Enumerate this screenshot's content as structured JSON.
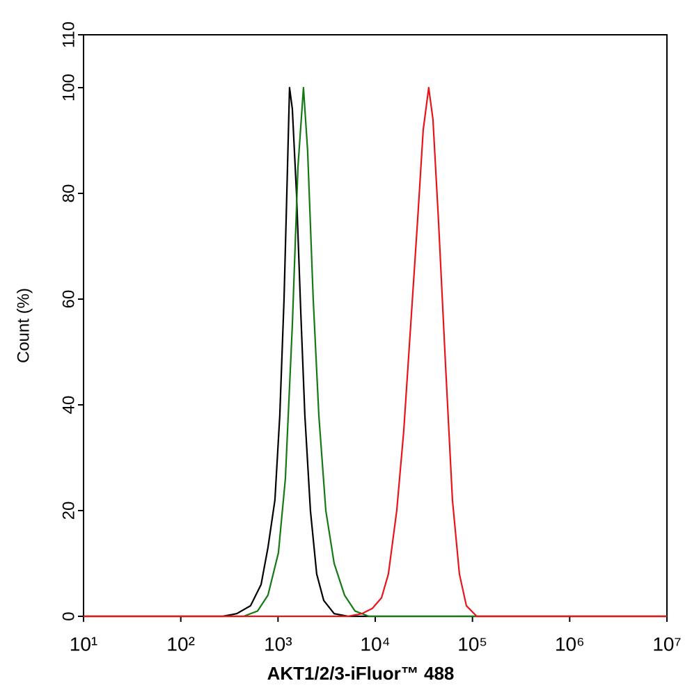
{
  "chart_data": {
    "type": "line",
    "x_label": "AKT1/2/3-iFluor™ 488",
    "y_label": "Count  (%)",
    "log_x": true,
    "xlim": [
      10,
      10000000
    ],
    "xticks": [
      {
        "value": 10,
        "label": "10¹"
      },
      {
        "value": 100,
        "label": "10²"
      },
      {
        "value": 1000,
        "label": "10³"
      },
      {
        "value": 10000,
        "label": "10⁴"
      },
      {
        "value": 100000,
        "label": "10⁵"
      },
      {
        "value": 1000000,
        "label": "10⁶"
      },
      {
        "value": 10000000,
        "label": "10⁷"
      }
    ],
    "ylim": [
      0,
      110
    ],
    "yticks": [
      0,
      20,
      40,
      60,
      80,
      100,
      110
    ],
    "series": [
      {
        "color": "#000000",
        "x": [
          10,
          270,
          376,
          522,
          669,
          788,
          929,
          1044,
          1153,
          1232,
          1315,
          1404,
          1549,
          1710,
          1888,
          2156,
          2500,
          2950,
          3780,
          5250,
          10000000
        ],
        "values": [
          0,
          0,
          0.5,
          2,
          6,
          13,
          22,
          38,
          60,
          80,
          100,
          96,
          80,
          58,
          38,
          20,
          8,
          3,
          0.5,
          0,
          0
        ]
      },
      {
        "color": "#137a13",
        "x": [
          10,
          443,
          617,
          788,
          1009,
          1191,
          1404,
          1603,
          1828,
          2018,
          2303,
          2630,
          3100,
          3780,
          4830,
          6190,
          8610,
          10000000
        ],
        "values": [
          0,
          0,
          1,
          4,
          12,
          26,
          55,
          85,
          100,
          88,
          60,
          38,
          20,
          10,
          4,
          1,
          0,
          0
        ]
      },
      {
        "color": "#e8141a",
        "x": [
          10,
          5250,
          7290,
          9350,
          11600,
          13650,
          16630,
          19630,
          23140,
          27300,
          31130,
          35500,
          39200,
          44700,
          52700,
          62200,
          73400,
          86500,
          110600,
          10000000
        ],
        "values": [
          0,
          0,
          0.5,
          1.5,
          3.5,
          8,
          20,
          35,
          55,
          75,
          92,
          100,
          94,
          75,
          48,
          22,
          8,
          2,
          0,
          0
        ]
      }
    ]
  }
}
